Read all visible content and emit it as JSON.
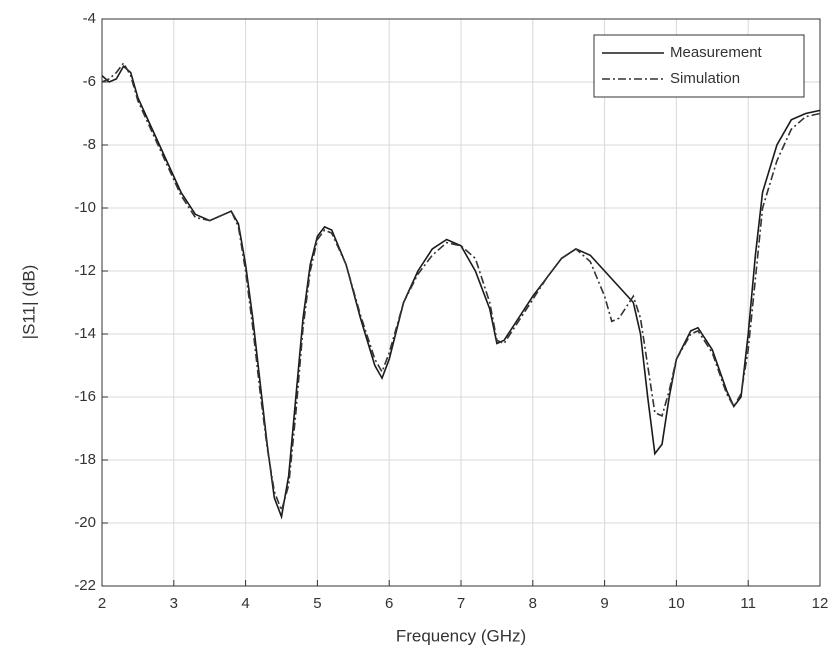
{
  "chart_data": {
    "type": "line",
    "xlabel": "Frequency (GHz)",
    "ylabel": "|S11| (dB)",
    "xlim": [
      2,
      12
    ],
    "xticks": [
      2,
      3,
      4,
      5,
      6,
      7,
      8,
      9,
      10,
      11,
      12
    ],
    "ylim": [
      -22,
      -4
    ],
    "yticks": [
      -22,
      -20,
      -18,
      -16,
      -14,
      -12,
      -10,
      -8,
      -6,
      -4
    ],
    "grid": true,
    "legend": "upper right",
    "series": [
      {
        "name": "Measurement",
        "color": "#1a1a1a",
        "linestyle": "solid",
        "x": [
          2.0,
          2.1,
          2.2,
          2.3,
          2.4,
          2.5,
          2.7,
          2.9,
          3.1,
          3.3,
          3.5,
          3.7,
          3.8,
          3.9,
          4.0,
          4.1,
          4.2,
          4.3,
          4.4,
          4.5,
          4.6,
          4.7,
          4.8,
          4.9,
          5.0,
          5.1,
          5.2,
          5.4,
          5.6,
          5.8,
          5.9,
          6.0,
          6.2,
          6.4,
          6.6,
          6.8,
          7.0,
          7.2,
          7.4,
          7.5,
          7.6,
          7.8,
          8.0,
          8.2,
          8.4,
          8.6,
          8.8,
          9.0,
          9.2,
          9.4,
          9.5,
          9.6,
          9.7,
          9.8,
          9.9,
          10.0,
          10.2,
          10.3,
          10.5,
          10.7,
          10.8,
          10.9,
          11.0,
          11.1,
          11.2,
          11.4,
          11.6,
          11.8,
          12.0
        ],
        "values": [
          -5.8,
          -6.0,
          -5.9,
          -5.5,
          -5.7,
          -6.5,
          -7.5,
          -8.5,
          -9.5,
          -10.2,
          -10.4,
          -10.2,
          -10.1,
          -10.5,
          -11.8,
          -13.5,
          -15.5,
          -17.5,
          -19.2,
          -19.8,
          -18.5,
          -16.0,
          -13.5,
          -11.8,
          -10.9,
          -10.6,
          -10.7,
          -11.8,
          -13.5,
          -15.0,
          -15.4,
          -14.8,
          -13.0,
          -12.0,
          -11.3,
          -11.0,
          -11.2,
          -12.0,
          -13.2,
          -14.3,
          -14.2,
          -13.5,
          -12.8,
          -12.2,
          -11.6,
          -11.3,
          -11.5,
          -12.0,
          -12.5,
          -13.0,
          -14.0,
          -16.0,
          -17.8,
          -17.5,
          -16.0,
          -14.8,
          -13.9,
          -13.8,
          -14.5,
          -15.8,
          -16.3,
          -16.0,
          -14.0,
          -11.5,
          -9.5,
          -8.0,
          -7.2,
          -7.0,
          -6.9
        ]
      },
      {
        "name": "Simulation",
        "color": "#333333",
        "linestyle": "dashdot",
        "x": [
          2.0,
          2.1,
          2.2,
          2.3,
          2.4,
          2.5,
          2.7,
          2.9,
          3.1,
          3.3,
          3.5,
          3.7,
          3.8,
          3.9,
          4.0,
          4.1,
          4.2,
          4.3,
          4.4,
          4.5,
          4.6,
          4.7,
          4.8,
          4.9,
          5.0,
          5.1,
          5.2,
          5.4,
          5.6,
          5.8,
          5.9,
          6.0,
          6.2,
          6.4,
          6.6,
          6.8,
          7.0,
          7.2,
          7.4,
          7.5,
          7.6,
          7.8,
          8.0,
          8.2,
          8.4,
          8.6,
          8.8,
          9.0,
          9.1,
          9.2,
          9.4,
          9.5,
          9.7,
          9.8,
          9.9,
          10.0,
          10.2,
          10.3,
          10.5,
          10.7,
          10.8,
          10.9,
          11.0,
          11.2,
          11.4,
          11.6,
          11.8,
          12.0
        ],
        "values": [
          -6.0,
          -5.9,
          -5.7,
          -5.4,
          -5.8,
          -6.6,
          -7.6,
          -8.6,
          -9.6,
          -10.3,
          -10.4,
          -10.2,
          -10.1,
          -10.6,
          -12.0,
          -13.8,
          -15.8,
          -17.6,
          -19.0,
          -19.6,
          -18.8,
          -16.5,
          -13.8,
          -12.0,
          -11.0,
          -10.7,
          -10.8,
          -11.8,
          -13.4,
          -14.8,
          -15.2,
          -14.6,
          -13.0,
          -12.1,
          -11.5,
          -11.1,
          -11.2,
          -11.6,
          -13.0,
          -14.2,
          -14.3,
          -13.6,
          -12.9,
          -12.2,
          -11.6,
          -11.3,
          -11.7,
          -12.8,
          -13.6,
          -13.5,
          -12.8,
          -13.5,
          -16.5,
          -16.6,
          -15.8,
          -14.8,
          -14.0,
          -13.9,
          -14.6,
          -15.9,
          -16.3,
          -15.9,
          -14.5,
          -10.0,
          -8.5,
          -7.5,
          -7.1,
          -7.0
        ]
      }
    ]
  }
}
